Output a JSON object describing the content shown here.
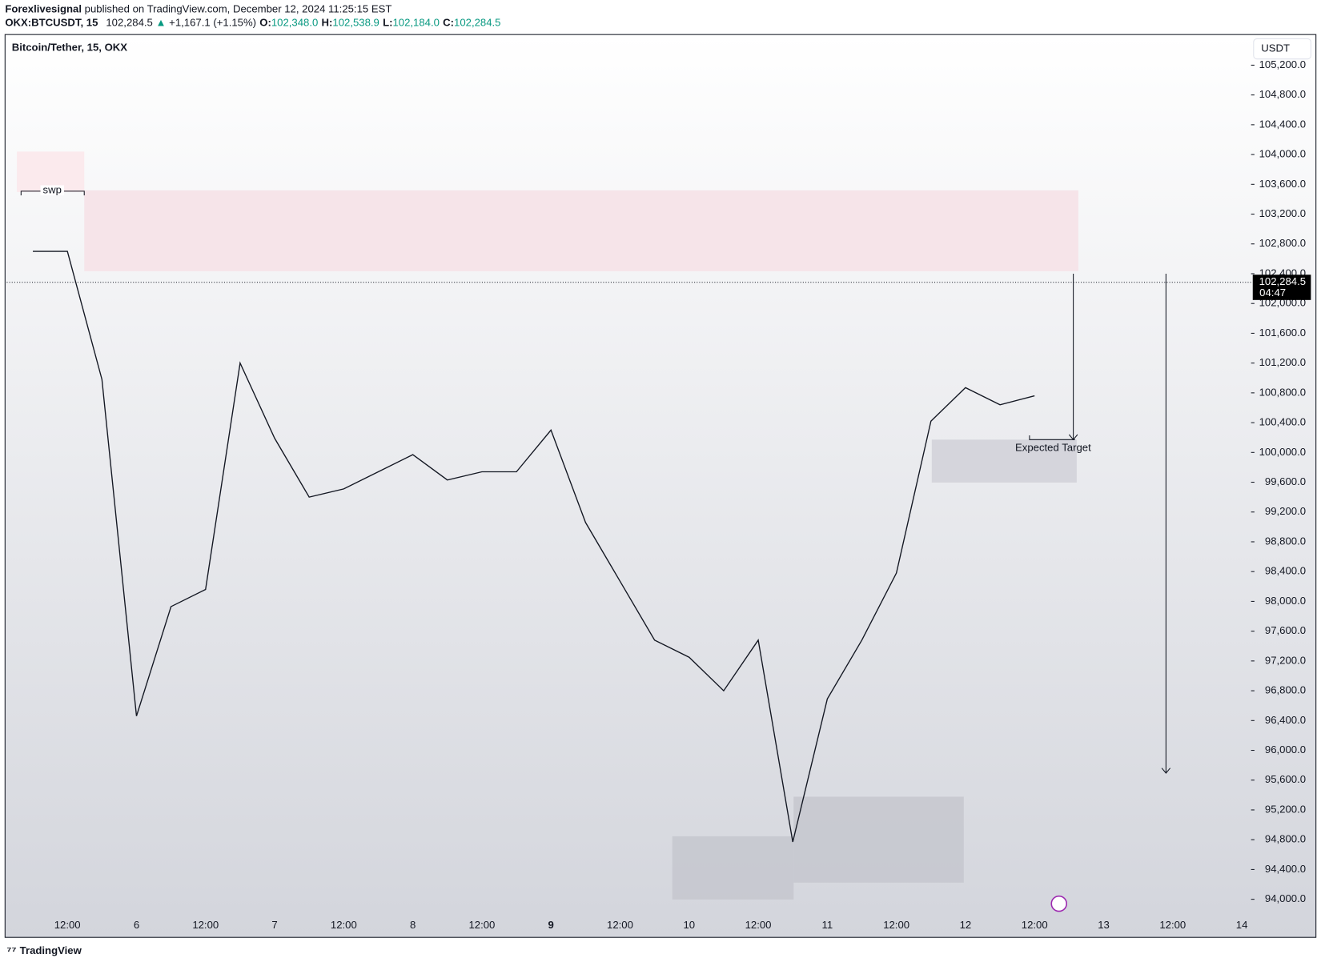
{
  "header": {
    "publisher": "Forexlivesignal",
    "published": "published on TradingView.com, December 12, 2024 11:25:15 EST",
    "symbol": "OKX:BTCUSDT, 15",
    "price": "102,284.5",
    "arrow": "▲",
    "change": "+1,167.1 (+1.15%)",
    "ohlc": [
      {
        "key": "O:",
        "value": "102,348.0"
      },
      {
        "key": "H:",
        "value": "102,538.9"
      },
      {
        "key": "L:",
        "value": "102,184.0"
      },
      {
        "key": "C:",
        "value": "102,284.5"
      }
    ]
  },
  "chart_data": {
    "type": "line",
    "title": "Bitcoin/Tether, 15, OKX",
    "currency": "USDT",
    "categories": [
      null,
      "12:00",
      null,
      "6",
      null,
      "12:00",
      null,
      "7",
      null,
      "12:00",
      null,
      "8",
      null,
      "12:00",
      null,
      "9",
      null,
      "12:00",
      null,
      "10",
      null,
      "12:00",
      null,
      "11",
      null,
      "12:00",
      null,
      "12",
      null,
      "12:00",
      null,
      "13",
      null,
      "12:00",
      null,
      "14"
    ],
    "values": [
      102700,
      102700,
      100980,
      96460,
      97930,
      98160,
      101200,
      100190,
      99400,
      99510,
      99740,
      99970,
      99630,
      99740,
      99740,
      100300,
      99060,
      98270,
      97480,
      97250,
      96800,
      97480,
      94770,
      96690,
      97480,
      98380,
      100420,
      100870,
      100640,
      100760,
      null,
      null,
      null,
      null,
      null,
      null
    ],
    "color": "#131722",
    "ylim": [
      93500,
      105600
    ],
    "yticks": [
      {
        "value": 94000,
        "label": "94,000.0"
      },
      {
        "value": 94400,
        "label": "94,400.0"
      },
      {
        "value": 94800,
        "label": "94,800.0"
      },
      {
        "value": 95200,
        "label": "95,200.0"
      },
      {
        "value": 95600,
        "label": "95,600.0"
      },
      {
        "value": 96000,
        "label": "96,000.0"
      },
      {
        "value": 96400,
        "label": "96,400.0"
      },
      {
        "value": 96800,
        "label": "96,800.0"
      },
      {
        "value": 97200,
        "label": "97,200.0"
      },
      {
        "value": 97600,
        "label": "97,600.0"
      },
      {
        "value": 98000,
        "label": "98,000.0"
      },
      {
        "value": 98400,
        "label": "98,400.0"
      },
      {
        "value": 98800,
        "label": "98,800.0"
      },
      {
        "value": 99200,
        "label": "99,200.0"
      },
      {
        "value": 99600,
        "label": "99,600.0"
      },
      {
        "value": 100000,
        "label": "100,000.0"
      },
      {
        "value": 100400,
        "label": "100,400.0"
      },
      {
        "value": 100800,
        "label": "100,800.0"
      },
      {
        "value": 101200,
        "label": "101,200.0"
      },
      {
        "value": 101600,
        "label": "101,600.0"
      },
      {
        "value": 102000,
        "label": "102,000.0"
      },
      {
        "value": 102400,
        "label": "102,400.0"
      },
      {
        "value": 102800,
        "label": "102,800.0"
      },
      {
        "value": 103200,
        "label": "103,200.0"
      },
      {
        "value": 103600,
        "label": "103,600.0"
      },
      {
        "value": 104000,
        "label": "104,000.0"
      },
      {
        "value": 104400,
        "label": "104,400.0"
      },
      {
        "value": 104800,
        "label": "104,800.0"
      },
      {
        "value": 105200,
        "label": "105,200.0"
      }
    ],
    "last_price": {
      "value": 102284.5,
      "label": "102,284.5"
    },
    "countdown": "04:47",
    "annotations": [
      "swp",
      "Expected Target"
    ]
  },
  "footer": {
    "brand": "TradingView"
  }
}
